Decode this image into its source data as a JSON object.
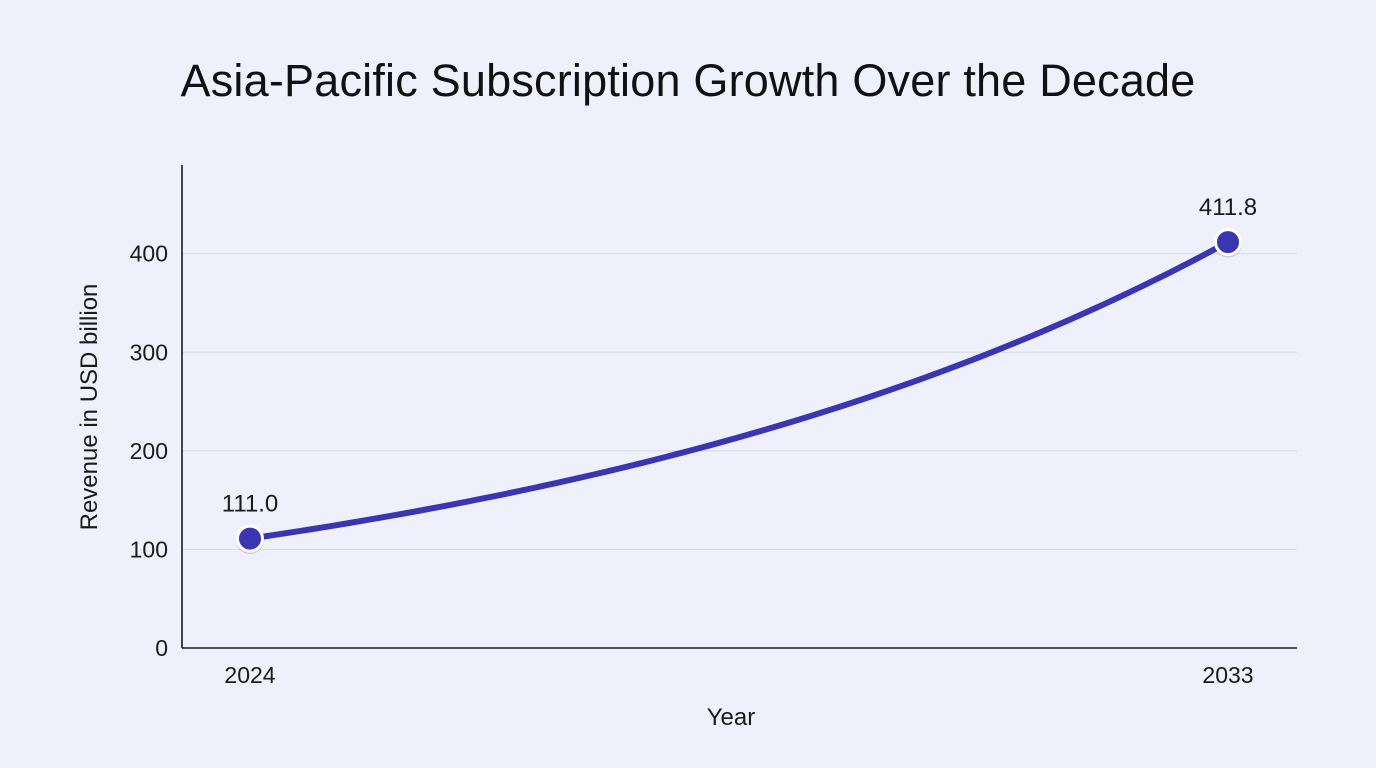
{
  "chart_data": {
    "type": "line",
    "title": "Asia-Pacific Subscription Growth Over the Decade",
    "xlabel": "Year",
    "ylabel": "Revenue in USD billion",
    "x": [
      "2024",
      "2033"
    ],
    "series": [
      {
        "values": [
          111.0,
          411.8
        ],
        "data_labels": [
          "111.0",
          "411.8"
        ]
      }
    ],
    "ylim": [
      0,
      490
    ],
    "yticks": [
      0,
      100,
      200,
      300,
      400
    ],
    "grid": true,
    "interpolation": "smooth exponential growth curve",
    "colors": {
      "line": "#3b35b3",
      "grid": "#d9dcea",
      "axis": "#1a1a1a",
      "background": "#eef1fc"
    }
  }
}
